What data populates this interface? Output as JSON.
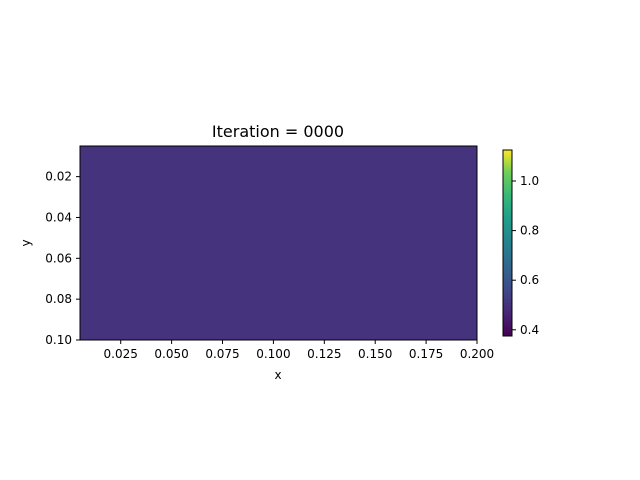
{
  "chart_data": {
    "type": "heatmap",
    "title": "Iteration = 0000",
    "xlabel": "x",
    "ylabel": "y",
    "x_range": [
      0.005,
      0.2
    ],
    "y_range": [
      0.005,
      0.1
    ],
    "y_inverted": true,
    "x_ticks": [
      "0.025",
      "0.050",
      "0.075",
      "0.100",
      "0.125",
      "0.150",
      "0.175",
      "0.200"
    ],
    "y_ticks": [
      "0.02",
      "0.04",
      "0.06",
      "0.08",
      "0.10"
    ],
    "field_value": 0.5,
    "field_color": "#46337e",
    "grid": false,
    "colorbar": {
      "colormap": "viridis",
      "range": [
        0.375,
        1.125
      ],
      "ticks": [
        "0.4",
        "0.6",
        "0.8",
        "1.0"
      ]
    }
  }
}
